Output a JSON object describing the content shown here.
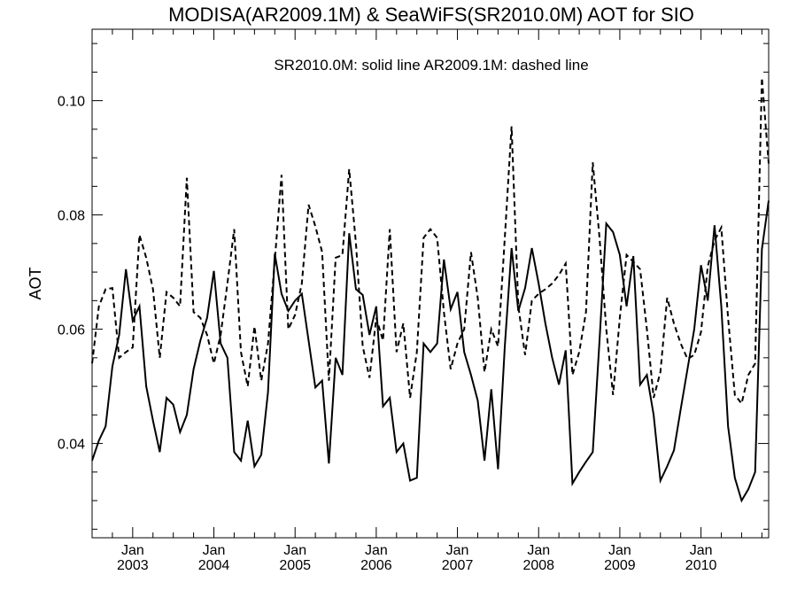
{
  "chart_data": {
    "type": "line",
    "title": "MODISA(AR2009.1M) & SeaWiFS(SR2010.0M)  AOT for SIO",
    "annotation": "SR2010.0M: solid line   AR2009.1M: dashed line",
    "xlabel": "",
    "ylabel": "AOT",
    "xlim": [
      "2002-07",
      "2010-11"
    ],
    "ylim": [
      0.0235,
      0.1125
    ],
    "y_ticks": [
      0.04,
      0.06,
      0.08,
      0.1
    ],
    "y_tick_labels": [
      "0.04",
      "0.06",
      "0.08",
      "0.10"
    ],
    "x_ticks": [
      {
        "month": "Jan",
        "year": "2003",
        "date": "2003-01"
      },
      {
        "month": "Jan",
        "year": "2004",
        "date": "2004-01"
      },
      {
        "month": "Jan",
        "year": "2005",
        "date": "2005-01"
      },
      {
        "month": "Jan",
        "year": "2006",
        "date": "2006-01"
      },
      {
        "month": "Jan",
        "year": "2007",
        "date": "2007-01"
      },
      {
        "month": "Jan",
        "year": "2008",
        "date": "2008-01"
      },
      {
        "month": "Jan",
        "year": "2009",
        "date": "2009-01"
      },
      {
        "month": "Jan",
        "year": "2010",
        "date": "2010-01"
      }
    ],
    "grid": false,
    "series": [
      {
        "name": "SR2010.0M",
        "style": "solid",
        "color": "#000000",
        "points": [
          [
            "2002-07",
            0.037
          ],
          [
            "2002-08",
            0.0405
          ],
          [
            "2002-09",
            0.043
          ],
          [
            "2002-10",
            0.0535
          ],
          [
            "2002-11",
            0.059
          ],
          [
            "2002-12",
            0.0705
          ],
          [
            "2003-01",
            0.0615
          ],
          [
            "2003-02",
            0.064
          ],
          [
            "2003-03",
            0.05
          ],
          [
            "2003-04",
            0.044
          ],
          [
            "2003-05",
            0.0385
          ],
          [
            "2003-06",
            0.048
          ],
          [
            "2003-07",
            0.0468
          ],
          [
            "2003-08",
            0.042
          ],
          [
            "2003-09",
            0.045
          ],
          [
            "2003-10",
            0.053
          ],
          [
            "2003-11",
            0.058
          ],
          [
            "2003-12",
            0.062
          ],
          [
            "2004-01",
            0.0702
          ],
          [
            "2004-02",
            0.0575
          ],
          [
            "2004-03",
            0.055
          ],
          [
            "2004-04",
            0.0385
          ],
          [
            "2004-05",
            0.037
          ],
          [
            "2004-06",
            0.044
          ],
          [
            "2004-07",
            0.036
          ],
          [
            "2004-08",
            0.038
          ],
          [
            "2004-09",
            0.049
          ],
          [
            "2004-10",
            0.0732
          ],
          [
            "2004-11",
            0.0662
          ],
          [
            "2004-12",
            0.0632
          ],
          [
            "2005-01",
            0.065
          ],
          [
            "2005-02",
            0.0662
          ],
          [
            "2005-03",
            0.058
          ],
          [
            "2005-04",
            0.0498
          ],
          [
            "2005-05",
            0.051
          ],
          [
            "2005-06",
            0.0365
          ],
          [
            "2005-07",
            0.055
          ],
          [
            "2005-08",
            0.052
          ],
          [
            "2005-09",
            0.0768
          ],
          [
            "2005-10",
            0.067
          ],
          [
            "2005-11",
            0.066
          ],
          [
            "2005-12",
            0.059
          ],
          [
            "2006-01",
            0.064
          ],
          [
            "2006-02",
            0.0465
          ],
          [
            "2006-03",
            0.048
          ],
          [
            "2006-04",
            0.0385
          ],
          [
            "2006-05",
            0.04
          ],
          [
            "2006-06",
            0.0335
          ],
          [
            "2006-07",
            0.034
          ],
          [
            "2006-08",
            0.0575
          ],
          [
            "2006-09",
            0.056
          ],
          [
            "2006-10",
            0.0575
          ],
          [
            "2006-11",
            0.0722
          ],
          [
            "2006-12",
            0.0635
          ],
          [
            "2007-01",
            0.0665
          ],
          [
            "2007-02",
            0.056
          ],
          [
            "2007-03",
            0.052
          ],
          [
            "2007-04",
            0.0475
          ],
          [
            "2007-05",
            0.037
          ],
          [
            "2007-06",
            0.0495
          ],
          [
            "2007-07",
            0.0355
          ],
          [
            "2007-08",
            0.057
          ],
          [
            "2007-09",
            0.0742
          ],
          [
            "2007-10",
            0.0632
          ],
          [
            "2007-11",
            0.0672
          ],
          [
            "2007-12",
            0.0742
          ],
          [
            "2008-01",
            0.068
          ],
          [
            "2008-02",
            0.061
          ],
          [
            "2008-03",
            0.055
          ],
          [
            "2008-04",
            0.0503
          ],
          [
            "2008-05",
            0.0563
          ],
          [
            "2008-06",
            0.033
          ],
          [
            "2008-07",
            0.035
          ],
          [
            "2008-08",
            0.0368
          ],
          [
            "2008-09",
            0.0385
          ],
          [
            "2008-10",
            0.058
          ],
          [
            "2008-11",
            0.0785
          ],
          [
            "2008-12",
            0.077
          ],
          [
            "2009-01",
            0.073
          ],
          [
            "2009-02",
            0.064
          ],
          [
            "2009-03",
            0.0728
          ],
          [
            "2009-04",
            0.0503
          ],
          [
            "2009-05",
            0.052
          ],
          [
            "2009-06",
            0.045
          ],
          [
            "2009-07",
            0.0335
          ],
          [
            "2009-08",
            0.036
          ],
          [
            "2009-09",
            0.0388
          ],
          [
            "2009-10",
            0.046
          ],
          [
            "2009-11",
            0.053
          ],
          [
            "2009-12",
            0.06
          ],
          [
            "2010-01",
            0.0712
          ],
          [
            "2010-02",
            0.065
          ],
          [
            "2010-03",
            0.0782
          ],
          [
            "2010-04",
            0.064
          ],
          [
            "2010-05",
            0.043
          ],
          [
            "2010-06",
            0.034
          ],
          [
            "2010-07",
            0.03
          ],
          [
            "2010-08",
            0.032
          ],
          [
            "2010-09",
            0.035
          ],
          [
            "2010-10",
            0.074
          ],
          [
            "2010-11",
            0.0825
          ]
        ]
      },
      {
        "name": "AR2009.1M",
        "style": "dashed",
        "color": "#000000",
        "points": [
          [
            "2002-07",
            0.054
          ],
          [
            "2002-08",
            0.064
          ],
          [
            "2002-09",
            0.067
          ],
          [
            "2002-10",
            0.0672
          ],
          [
            "2002-11",
            0.055
          ],
          [
            "2002-12",
            0.056
          ],
          [
            "2003-01",
            0.0568
          ],
          [
            "2003-02",
            0.0765
          ],
          [
            "2003-03",
            0.0725
          ],
          [
            "2003-04",
            0.067
          ],
          [
            "2003-05",
            0.055
          ],
          [
            "2003-06",
            0.0665
          ],
          [
            "2003-07",
            0.0655
          ],
          [
            "2003-08",
            0.064
          ],
          [
            "2003-09",
            0.0865
          ],
          [
            "2003-10",
            0.063
          ],
          [
            "2003-11",
            0.062
          ],
          [
            "2003-12",
            0.059
          ],
          [
            "2004-01",
            0.054
          ],
          [
            "2004-02",
            0.059
          ],
          [
            "2004-03",
            0.068
          ],
          [
            "2004-04",
            0.0775
          ],
          [
            "2004-05",
            0.056
          ],
          [
            "2004-06",
            0.05
          ],
          [
            "2004-07",
            0.0605
          ],
          [
            "2004-08",
            0.051
          ],
          [
            "2004-09",
            0.0575
          ],
          [
            "2004-10",
            0.072
          ],
          [
            "2004-11",
            0.087
          ],
          [
            "2004-12",
            0.06
          ],
          [
            "2005-01",
            0.0625
          ],
          [
            "2005-02",
            0.068
          ],
          [
            "2005-03",
            0.0818
          ],
          [
            "2005-04",
            0.078
          ],
          [
            "2005-05",
            0.0735
          ],
          [
            "2005-06",
            0.051
          ],
          [
            "2005-07",
            0.0725
          ],
          [
            "2005-08",
            0.073
          ],
          [
            "2005-09",
            0.088
          ],
          [
            "2005-10",
            0.075
          ],
          [
            "2005-11",
            0.057
          ],
          [
            "2005-12",
            0.0515
          ],
          [
            "2006-01",
            0.062
          ],
          [
            "2006-02",
            0.058
          ],
          [
            "2006-03",
            0.0775
          ],
          [
            "2006-04",
            0.056
          ],
          [
            "2006-05",
            0.061
          ],
          [
            "2006-06",
            0.048
          ],
          [
            "2006-07",
            0.056
          ],
          [
            "2006-08",
            0.076
          ],
          [
            "2006-09",
            0.0775
          ],
          [
            "2006-10",
            0.076
          ],
          [
            "2006-11",
            0.063
          ],
          [
            "2006-12",
            0.053
          ],
          [
            "2007-01",
            0.0575
          ],
          [
            "2007-02",
            0.06
          ],
          [
            "2007-03",
            0.0735
          ],
          [
            "2007-04",
            0.0655
          ],
          [
            "2007-05",
            0.0525
          ],
          [
            "2007-06",
            0.06
          ],
          [
            "2007-07",
            0.057
          ],
          [
            "2007-08",
            0.076
          ],
          [
            "2007-09",
            0.0955
          ],
          [
            "2007-10",
            0.064
          ],
          [
            "2007-11",
            0.0555
          ],
          [
            "2007-12",
            0.065
          ],
          [
            "2008-01",
            0.0662
          ],
          [
            "2008-02",
            0.067
          ],
          [
            "2008-03",
            0.068
          ],
          [
            "2008-04",
            0.0695
          ],
          [
            "2008-05",
            0.0715
          ],
          [
            "2008-06",
            0.052
          ],
          [
            "2008-07",
            0.056
          ],
          [
            "2008-08",
            0.063
          ],
          [
            "2008-09",
            0.0892
          ],
          [
            "2008-10",
            0.076
          ],
          [
            "2008-11",
            0.06
          ],
          [
            "2008-12",
            0.0485
          ],
          [
            "2009-01",
            0.062
          ],
          [
            "2009-02",
            0.073
          ],
          [
            "2009-03",
            0.0718
          ],
          [
            "2009-04",
            0.0705
          ],
          [
            "2009-05",
            0.06
          ],
          [
            "2009-06",
            0.048
          ],
          [
            "2009-07",
            0.0525
          ],
          [
            "2009-08",
            0.0655
          ],
          [
            "2009-09",
            0.061
          ],
          [
            "2009-10",
            0.0575
          ],
          [
            "2009-11",
            0.0548
          ],
          [
            "2009-12",
            0.0555
          ],
          [
            "2010-01",
            0.0595
          ],
          [
            "2010-02",
            0.071
          ],
          [
            "2010-03",
            0.0755
          ],
          [
            "2010-04",
            0.0778
          ],
          [
            "2010-05",
            0.062
          ],
          [
            "2010-06",
            0.0485
          ],
          [
            "2010-07",
            0.047
          ],
          [
            "2010-08",
            0.052
          ],
          [
            "2010-09",
            0.054
          ],
          [
            "2010-10",
            0.104
          ],
          [
            "2010-11",
            0.089
          ]
        ]
      }
    ]
  }
}
